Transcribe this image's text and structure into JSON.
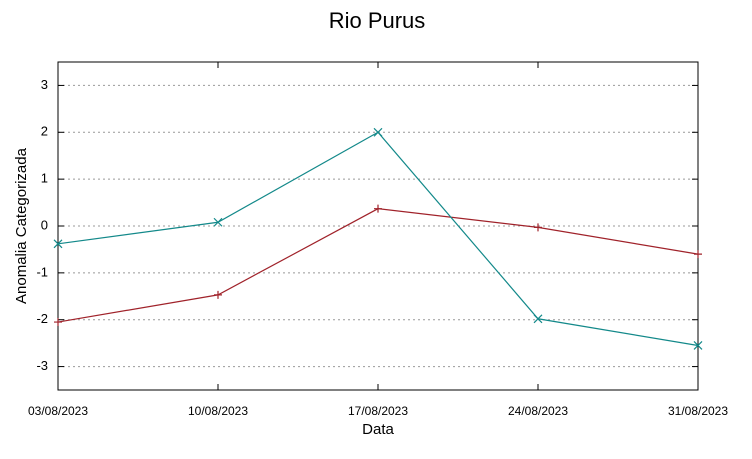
{
  "chart_data": {
    "type": "line",
    "title": "Rio Purus",
    "x_label": "Data",
    "y_label": "Anomalia Categorizada",
    "categories": [
      "03/08/2023",
      "10/08/2023",
      "17/08/2023",
      "24/08/2023",
      "31/08/2023"
    ],
    "series": [
      {
        "color": "#a0222a",
        "marker": "+",
        "values": [
          -2.05,
          -1.47,
          0.37,
          -0.03,
          -0.6
        ]
      },
      {
        "color": "#13898a",
        "marker": "x",
        "values": [
          -0.38,
          0.08,
          2.0,
          -1.98,
          -2.55
        ]
      }
    ],
    "ylim": [
      -3.5,
      3.5
    ],
    "yticks": [
      -3,
      -2,
      -1,
      0,
      1,
      2,
      3
    ],
    "grid": true
  }
}
